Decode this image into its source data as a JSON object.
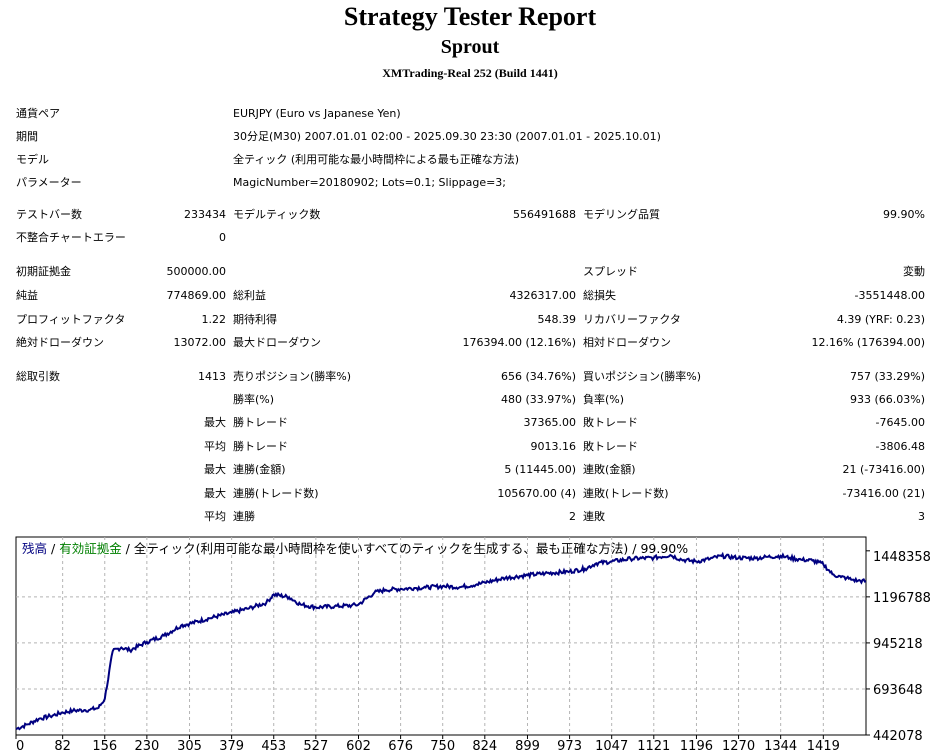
{
  "header": {
    "title": "Strategy Tester Report",
    "ea_name": "Sprout",
    "server": "XMTrading-Real 252 (Build 1441)"
  },
  "info": {
    "symbol_label": "通貨ペア",
    "symbol": "EURJPY (Euro vs Japanese Yen)",
    "period_label": "期間",
    "period": "30分足(M30) 2007.01.01 02:00 - 2025.09.30 23:30 (2007.01.01 - 2025.10.01)",
    "model_label": "モデル",
    "model": "全ティック (利用可能な最小時間枠による最も正確な方法)",
    "params_label": "パラメーター",
    "params": "MagicNumber=20180902; Lots=0.1; Slippage=3;"
  },
  "stats": {
    "bars_label": "テストバー数",
    "bars": "233434",
    "ticks_label": "モデルティック数",
    "ticks": "556491688",
    "quality_label": "モデリング品質",
    "quality": "99.90%",
    "mismatch_label": "不整合チャートエラー",
    "mismatch": "0",
    "deposit_label": "初期証拠金",
    "deposit": "500000.00",
    "spread_label": "スプレッド",
    "spread": "変動",
    "net_label": "純益",
    "net": "774869.00",
    "gross_profit_label": "総利益",
    "gross_profit": "4326317.00",
    "gross_loss_label": "総損失",
    "gross_loss": "-3551448.00",
    "pf_label": "プロフィットファクタ",
    "pf": "1.22",
    "expected_label": "期待利得",
    "expected": "548.39",
    "recovery_label": "リカバリーファクタ",
    "recovery": "4.39 (YRF: 0.23)",
    "abs_dd_label": "絶対ドローダウン",
    "abs_dd": "13072.00",
    "max_dd_label": "最大ドローダウン",
    "max_dd": "176394.00 (12.16%)",
    "rel_dd_label": "相対ドローダウン",
    "rel_dd": "12.16% (176394.00)",
    "trades_label": "総取引数",
    "trades": "1413",
    "short_label": "売りポジション(勝率%)",
    "short": "656 (34.76%)",
    "long_label": "買いポジション(勝率%)",
    "long": "757 (33.29%)",
    "winrate_label": "勝率(%)",
    "winrate": "480 (33.97%)",
    "lossrate_label": "負率(%)",
    "lossrate": "933 (66.03%)",
    "largest_label": "最大",
    "largest_win_label": "勝トレード",
    "largest_win": "37365.00",
    "largest_loss_label": "敗トレード",
    "largest_loss": "-7645.00",
    "average_label": "平均",
    "avg_win_label": "勝トレード",
    "avg_win": "9013.16",
    "avg_loss_label": "敗トレード",
    "avg_loss": "-3806.48",
    "max1_label": "最大",
    "consec_wins_money_label": "連勝(金額)",
    "consec_wins_money": "5 (11445.00)",
    "consec_losses_money_label": "連敗(金額)",
    "consec_losses_money": "21 (-73416.00)",
    "max2_label": "最大",
    "consec_wins_count_label": "連勝(トレード数)",
    "consec_wins_count": "105670.00 (4)",
    "consec_losses_count_label": "連敗(トレード数)",
    "consec_losses_count": "-73416.00 (21)",
    "avg2_label": "平均",
    "avg_consec_wins_label": "連勝",
    "avg_consec_wins": "2",
    "avg_consec_losses_label": "連敗",
    "avg_consec_losses": "3"
  },
  "chart_data": {
    "type": "line",
    "legend": {
      "balance": "残高",
      "sep1": " / ",
      "equity": "有効証拠金",
      "sep2": " / ",
      "model": "全ティック(利用可能な最小時間枠を使いすべてのティックを生成する、最も正確な方法)",
      "sep3": " / ",
      "quality": "99.90%"
    },
    "colors": {
      "balance": "#000080",
      "equity": "#008000",
      "grid": "#b4b4b4"
    },
    "x_ticks": [
      0,
      82,
      156,
      230,
      305,
      379,
      453,
      527,
      602,
      676,
      750,
      824,
      899,
      973,
      1047,
      1121,
      1196,
      1270,
      1344,
      1419
    ],
    "y_ticks": [
      1448358,
      1196788,
      945218,
      693648,
      442078
    ],
    "xlim": [
      0,
      1494
    ],
    "ylim": [
      442078,
      1523830
    ],
    "series": [
      {
        "name": "残高",
        "x": [
          0,
          20,
          40,
          60,
          82,
          100,
          120,
          130,
          145,
          156,
          170,
          185,
          200,
          230,
          260,
          290,
          305,
          340,
          379,
          410,
          440,
          453,
          480,
          500,
          527,
          560,
          590,
          602,
          630,
          650,
          676,
          700,
          720,
          750,
          780,
          810,
          824,
          860,
          899,
          930,
          973,
          1000,
          1020,
          1047,
          1080,
          1121,
          1150,
          1170,
          1196,
          1220,
          1240,
          1270,
          1300,
          1320,
          1344,
          1360,
          1380,
          1400,
          1419,
          1435,
          1450,
          1460,
          1470,
          1480,
          1494
        ],
        "y": [
          475000,
          500000,
          530000,
          545000,
          565000,
          575000,
          578000,
          580000,
          590000,
          640000,
          900000,
          920000,
          905000,
          950000,
          985000,
          1040000,
          1050000,
          1080000,
          1110000,
          1135000,
          1165000,
          1210000,
          1195000,
          1155000,
          1140000,
          1145000,
          1150000,
          1155000,
          1220000,
          1235000,
          1240000,
          1245000,
          1248000,
          1255000,
          1250000,
          1265000,
          1275000,
          1300000,
          1315000,
          1325000,
          1335000,
          1350000,
          1380000,
          1390000,
          1405000,
          1410000,
          1425000,
          1400000,
          1390000,
          1405000,
          1420000,
          1410000,
          1408000,
          1415000,
          1420000,
          1410000,
          1400000,
          1395000,
          1375000,
          1320000,
          1305000,
          1300000,
          1290000,
          1285000,
          1282000
        ]
      }
    ]
  }
}
